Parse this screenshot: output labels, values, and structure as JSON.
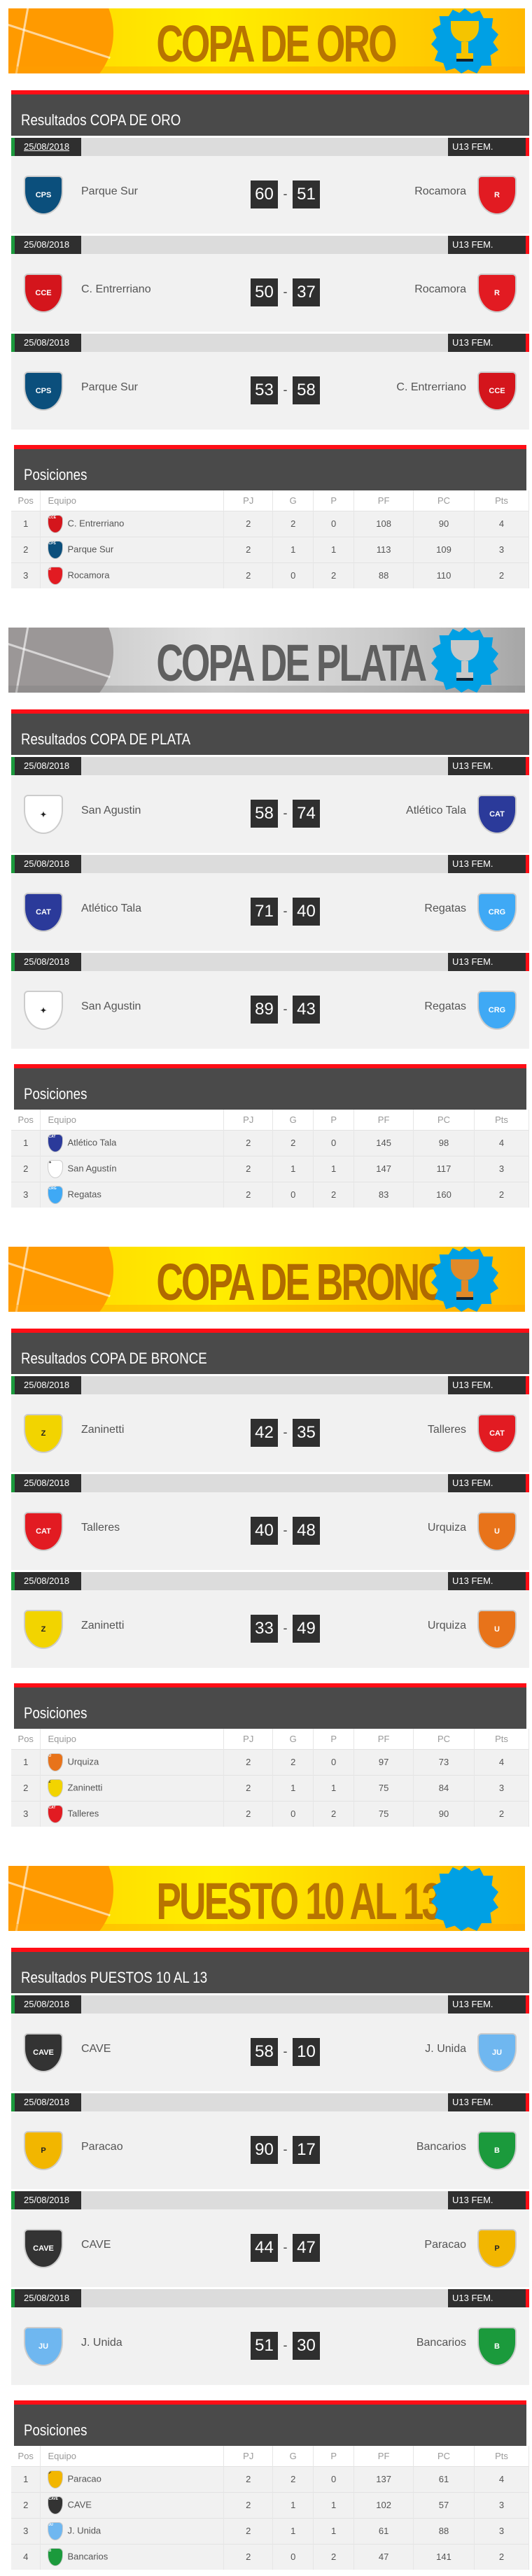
{
  "colors": {
    "accent_red": "#ff0e16",
    "header_dark": "#4a4a4a",
    "date_green": "#1b9a3c",
    "badge_blue": "#00a0e4"
  },
  "table_headers": [
    "Pos",
    "Equipo",
    "PJ",
    "G",
    "P",
    "PF",
    "PC",
    "Pts"
  ],
  "teams": {
    "parque_sur": {
      "name": "Parque Sur",
      "icon": "parque-sur-crest-icon",
      "color": "#0b4f7c",
      "text": "CPS"
    },
    "rocamora": {
      "name": "Rocamora",
      "icon": "rocamora-crest-icon",
      "color": "#e21b22",
      "text": "R"
    },
    "entrerriano": {
      "name": "C. Entrerriano",
      "icon": "entrerriano-crest-icon",
      "color": "#d4151c",
      "text": "CCE"
    },
    "san_agustin": {
      "name": "San Agustin",
      "icon": "san-agustin-crest-icon",
      "color": "#ffffff",
      "text": "✦"
    },
    "san_agustin_t": {
      "name": "San Agustín",
      "icon": "san-agustin-crest-icon",
      "color": "#ffffff",
      "text": "✦"
    },
    "tala": {
      "name": "Atlético Tala",
      "icon": "atletico-tala-crest-icon",
      "color": "#2b3a9a",
      "text": "CAT"
    },
    "regatas": {
      "name": "Regatas",
      "icon": "regatas-crest-icon",
      "color": "#3fa9f5",
      "text": "CRG"
    },
    "zaninetti": {
      "name": "Zaninetti",
      "icon": "zaninetti-crest-icon",
      "color": "#f2d400",
      "text": "Z"
    },
    "talleres": {
      "name": "Talleres",
      "icon": "talleres-crest-icon",
      "color": "#e21b22",
      "text": "CAT"
    },
    "urquiza": {
      "name": "Urquiza",
      "icon": "urquiza-crest-icon",
      "color": "#e8731a",
      "text": "U"
    },
    "cave": {
      "name": "CAVE",
      "icon": "cave-crest-icon",
      "color": "#333333",
      "text": "CAVE"
    },
    "junida": {
      "name": "J. Unida",
      "icon": "juventud-unida-crest-icon",
      "color": "#6fb7f0",
      "text": "JU"
    },
    "paracao": {
      "name": "Paracao",
      "icon": "paracao-crest-icon",
      "color": "#f2b600",
      "text": "P"
    },
    "bancarios": {
      "name": "Bancarios",
      "icon": "bancarios-crest-icon",
      "color": "#1b9a3c",
      "text": "B"
    }
  },
  "sections": [
    {
      "banner": "COPA DE ORO",
      "theme": "gold",
      "trophy": "gold-trophy-icon",
      "trophy_color": "#f5c400",
      "results_title": "Resultados COPA DE ORO",
      "positions_title": "Posiciones",
      "matches": [
        {
          "date": "25/08/2018",
          "category": "U13 FEM.",
          "home": "parque_sur",
          "home_score": "60",
          "away": "rocamora",
          "away_score": "51"
        },
        {
          "date": "25/08/2018",
          "category": "U13 FEM.",
          "home": "entrerriano",
          "home_score": "50",
          "away": "rocamora",
          "away_score": "37"
        },
        {
          "date": "25/08/2018",
          "category": "U13 FEM.",
          "home": "parque_sur",
          "home_score": "53",
          "away": "entrerriano",
          "away_score": "58"
        }
      ],
      "standings": [
        {
          "pos": "1",
          "team": "entrerriano",
          "pj": "2",
          "g": "2",
          "p": "0",
          "pf": "108",
          "pc": "90",
          "pts": "4"
        },
        {
          "pos": "2",
          "team": "parque_sur",
          "pj": "2",
          "g": "1",
          "p": "1",
          "pf": "113",
          "pc": "109",
          "pts": "3"
        },
        {
          "pos": "3",
          "team": "rocamora",
          "pj": "2",
          "g": "0",
          "p": "2",
          "pf": "88",
          "pc": "110",
          "pts": "2"
        }
      ]
    },
    {
      "banner": "COPA DE PLATA",
      "theme": "silver",
      "trophy": "silver-trophy-icon",
      "trophy_color": "#c8c8c8",
      "results_title": "Resultados COPA DE PLATA",
      "positions_title": "Posiciones",
      "matches": [
        {
          "date": "25/08/2018",
          "category": "U13 FEM.",
          "home": "san_agustin",
          "home_score": "58",
          "away": "tala",
          "away_score": "74"
        },
        {
          "date": "25/08/2018",
          "category": "U13 FEM.",
          "home": "tala",
          "home_score": "71",
          "away": "regatas",
          "away_score": "40"
        },
        {
          "date": "25/08/2018",
          "category": "U13 FEM.",
          "home": "san_agustin",
          "home_score": "89",
          "away": "regatas",
          "away_score": "43"
        }
      ],
      "standings": [
        {
          "pos": "1",
          "team": "tala",
          "pj": "2",
          "g": "2",
          "p": "0",
          "pf": "145",
          "pc": "98",
          "pts": "4"
        },
        {
          "pos": "2",
          "team": "san_agustin_t",
          "pj": "2",
          "g": "1",
          "p": "1",
          "pf": "147",
          "pc": "117",
          "pts": "3"
        },
        {
          "pos": "3",
          "team": "regatas",
          "pj": "2",
          "g": "0",
          "p": "2",
          "pf": "83",
          "pc": "160",
          "pts": "2"
        }
      ]
    },
    {
      "banner": "COPA DE BRONCE",
      "theme": "gold bronze",
      "trophy": "bronze-trophy-icon",
      "trophy_color": "#e08a2a",
      "results_title": "Resultados COPA DE BRONCE",
      "positions_title": "Posiciones",
      "matches": [
        {
          "date": "25/08/2018",
          "category": "U13 FEM.",
          "home": "zaninetti",
          "home_score": "42",
          "away": "talleres",
          "away_score": "35"
        },
        {
          "date": "25/08/2018",
          "category": "U13 FEM.",
          "home": "talleres",
          "home_score": "40",
          "away": "urquiza",
          "away_score": "48"
        },
        {
          "date": "25/08/2018",
          "category": "U13 FEM.",
          "home": "zaninetti",
          "home_score": "33",
          "away": "urquiza",
          "away_score": "49"
        }
      ],
      "standings": [
        {
          "pos": "1",
          "team": "urquiza",
          "pj": "2",
          "g": "2",
          "p": "0",
          "pf": "97",
          "pc": "73",
          "pts": "4"
        },
        {
          "pos": "2",
          "team": "zaninetti",
          "pj": "2",
          "g": "1",
          "p": "1",
          "pf": "75",
          "pc": "84",
          "pts": "3"
        },
        {
          "pos": "3",
          "team": "talleres",
          "pj": "2",
          "g": "0",
          "p": "2",
          "pf": "75",
          "pc": "90",
          "pts": "2"
        }
      ]
    },
    {
      "banner": "PUESTO 10 AL 13",
      "theme": "gold",
      "trophy": "",
      "trophy_color": "",
      "results_title": "Resultados PUESTOS 10 AL 13",
      "positions_title": "Posiciones",
      "matches": [
        {
          "date": "25/08/2018",
          "category": "U13 FEM.",
          "home": "cave",
          "home_score": "58",
          "away": "junida",
          "away_score": "10"
        },
        {
          "date": "25/08/2018",
          "category": "U13 FEM.",
          "home": "paracao",
          "home_score": "90",
          "away": "bancarios",
          "away_score": "17"
        },
        {
          "date": "25/08/2018",
          "category": "U13 FEM.",
          "home": "cave",
          "home_score": "44",
          "away": "paracao",
          "away_score": "47"
        },
        {
          "date": "25/08/2018",
          "category": "U13 FEM.",
          "home": "junida",
          "home_score": "51",
          "away": "bancarios",
          "away_score": "30"
        }
      ],
      "standings": [
        {
          "pos": "1",
          "team": "paracao",
          "pj": "2",
          "g": "2",
          "p": "0",
          "pf": "137",
          "pc": "61",
          "pts": "4"
        },
        {
          "pos": "2",
          "team": "cave",
          "pj": "2",
          "g": "1",
          "p": "1",
          "pf": "102",
          "pc": "57",
          "pts": "3"
        },
        {
          "pos": "3",
          "team": "junida",
          "pj": "2",
          "g": "1",
          "p": "1",
          "pf": "61",
          "pc": "88",
          "pts": "3"
        },
        {
          "pos": "4",
          "team": "bancarios",
          "pj": "2",
          "g": "0",
          "p": "2",
          "pf": "47",
          "pc": "141",
          "pts": "2"
        }
      ]
    }
  ]
}
